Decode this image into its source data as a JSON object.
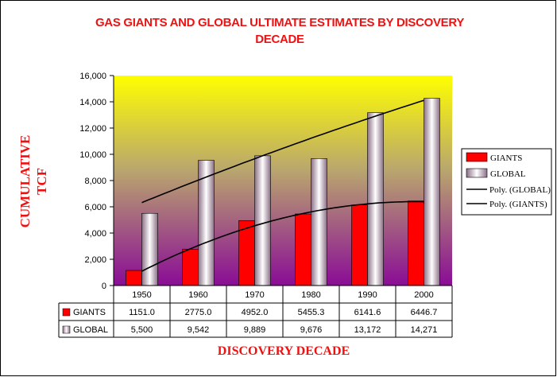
{
  "chart_data": {
    "type": "bar",
    "title_line1": "GAS GIANTS AND GLOBAL ULTIMATE ESTIMATES BY DISCOVERY",
    "title_line2": "DECADE",
    "ylabel_line1": "CUMULATIVE",
    "ylabel_line2": "TCF",
    "xlabel": "DISCOVERY DECADE",
    "categories": [
      "1950",
      "1960",
      "1970",
      "1980",
      "1990",
      "2000"
    ],
    "ylim": [
      0,
      16000
    ],
    "yticks": [
      "0",
      "2,000",
      "4,000",
      "6,000",
      "8,000",
      "10,000",
      "12,000",
      "14,000",
      "16,000"
    ],
    "series": [
      {
        "name": "GIANTS",
        "values": [
          1151.0,
          2775.0,
          4952.0,
          5455.3,
          6141.6,
          6446.7
        ],
        "table_labels": [
          "1151.0",
          "2775.0",
          "4952.0",
          "5455.3",
          "6141.6",
          "6446.7"
        ],
        "color": "#ff0000"
      },
      {
        "name": "GLOBAL",
        "values": [
          5500,
          9542,
          9889,
          9676,
          13172,
          14271
        ],
        "table_labels": [
          "5,500",
          "9,542",
          "9,889",
          "9,676",
          "13,172",
          "14,271"
        ],
        "color": "#d9c3d3"
      }
    ],
    "trendlines": [
      {
        "name": "Poly. (GLOBAL)",
        "of_series": "GLOBAL",
        "type": "polynomial"
      },
      {
        "name": "Poly. (GIANTS)",
        "of_series": "GIANTS",
        "type": "polynomial"
      }
    ],
    "legend": {
      "position": "right",
      "items": [
        "GIANTS",
        "GLOBAL",
        "Poly. (GLOBAL)",
        "Poly. (GIANTS)"
      ]
    },
    "data_table": true,
    "plot_background": "gradient yellow to purple",
    "grid": false
  }
}
